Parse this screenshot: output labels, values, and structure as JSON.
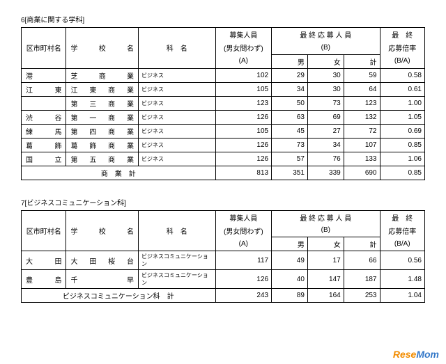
{
  "section6": {
    "title": "6[商業に関する学科]",
    "headers": {
      "ward": "区市町村名",
      "school": "学　校　名",
      "dept": "科　名",
      "capacity_l1": "募集人員",
      "capacity_l2": "(男女問わず)",
      "capacity_l3": "(A)",
      "applicants_l1": "最 終 応 募 人 員",
      "applicants_l2": "(B)",
      "male": "男",
      "female": "女",
      "total": "計",
      "ratio_l1": "最　終",
      "ratio_l2": "応募倍率",
      "ratio_l3": "(B/A)"
    },
    "rows": [
      {
        "ward": "港",
        "school": "芝　商　業",
        "dept": "ビジネス",
        "cap": "102",
        "m": "29",
        "f": "30",
        "t": "59",
        "r": "0.58"
      },
      {
        "ward": "江東",
        "school": "江 東 商 業",
        "dept": "ビジネス",
        "cap": "105",
        "m": "34",
        "f": "30",
        "t": "64",
        "r": "0.61"
      },
      {
        "ward": "",
        "school": "第 三 商 業",
        "dept": "ビジネス",
        "cap": "123",
        "m": "50",
        "f": "73",
        "t": "123",
        "r": "1.00"
      },
      {
        "ward": "渋谷",
        "school": "第 一 商 業",
        "dept": "ビジネス",
        "cap": "126",
        "m": "63",
        "f": "69",
        "t": "132",
        "r": "1.05"
      },
      {
        "ward": "練馬",
        "school": "第 四 商 業",
        "dept": "ビジネス",
        "cap": "105",
        "m": "45",
        "f": "27",
        "t": "72",
        "r": "0.69"
      },
      {
        "ward": "葛飾",
        "school": "葛 飾 商 業",
        "dept": "ビジネス",
        "cap": "126",
        "m": "73",
        "f": "34",
        "t": "107",
        "r": "0.85"
      },
      {
        "ward": "国立",
        "school": "第 五 商 業",
        "dept": "ビジネス",
        "cap": "126",
        "m": "57",
        "f": "76",
        "t": "133",
        "r": "1.06"
      }
    ],
    "total": {
      "label": "商　業　計",
      "cap": "813",
      "m": "351",
      "f": "339",
      "t": "690",
      "r": "0.85"
    }
  },
  "section7": {
    "title": "7[ビジネスコミュニケーション科]",
    "rows": [
      {
        "ward": "大田",
        "school": "大 田 桜 台",
        "dept": "ビジネスコミュニケーション",
        "cap": "117",
        "m": "49",
        "f": "17",
        "t": "66",
        "r": "0.56"
      },
      {
        "ward": "豊島",
        "school": "千　　早",
        "dept": "ビジネスコミュニケーション",
        "cap": "126",
        "m": "40",
        "f": "147",
        "t": "187",
        "r": "1.48"
      }
    ],
    "total": {
      "label": "ビジネスコミュニケーション科　計",
      "cap": "243",
      "m": "89",
      "f": "164",
      "t": "253",
      "r": "1.04"
    }
  },
  "watermark": {
    "left": "Rese",
    "right": "Mom"
  }
}
